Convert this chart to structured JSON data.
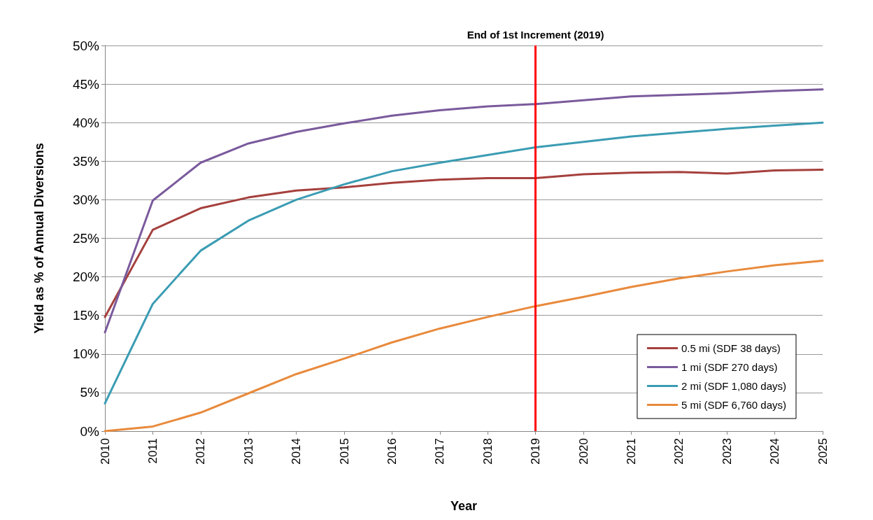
{
  "chart_data": {
    "type": "line",
    "xlabel": "Year",
    "ylabel": "Yield as % of Annual Diversions",
    "categories": [
      "2010",
      "2011",
      "2012",
      "2013",
      "2014",
      "2015",
      "2016",
      "2017",
      "2018",
      "2019",
      "2020",
      "2021",
      "2022",
      "2023",
      "2024",
      "2025"
    ],
    "series": [
      {
        "name": "0.5 mi (SDF 38 days)",
        "color": "#a5403d",
        "values": [
          14.8,
          26.1,
          28.9,
          30.3,
          31.2,
          31.6,
          32.2,
          32.6,
          32.8,
          32.8,
          33.3,
          33.5,
          33.6,
          33.4,
          33.8,
          33.9
        ]
      },
      {
        "name": "1 mi (SDF 270 days)",
        "color": "#7a5a9c",
        "values": [
          12.8,
          29.9,
          34.8,
          37.3,
          38.8,
          39.9,
          40.9,
          41.6,
          42.1,
          42.4,
          42.9,
          43.4,
          43.6,
          43.8,
          44.1,
          44.3
        ]
      },
      {
        "name": "2 mi (SDF 1,080 days)",
        "color": "#3a9cb3",
        "values": [
          3.6,
          16.5,
          23.4,
          27.3,
          30.0,
          32.0,
          33.7,
          34.8,
          35.8,
          36.8,
          37.5,
          38.2,
          38.7,
          39.2,
          39.6,
          40.0
        ]
      },
      {
        "name": "5 mi (SDF 6,760 days)",
        "color": "#e88a3c",
        "values": [
          0,
          0.6,
          2.4,
          4.9,
          7.4,
          9.4,
          11.5,
          13.3,
          14.8,
          16.2,
          17.4,
          18.7,
          19.8,
          20.7,
          21.5,
          22.1
        ]
      }
    ],
    "ylim": [
      0,
      50
    ],
    "yticks": [
      {
        "value": 0,
        "label": "0%"
      },
      {
        "value": 5,
        "label": "5%"
      },
      {
        "value": 10,
        "label": "10%"
      },
      {
        "value": 15,
        "label": "15%"
      },
      {
        "value": 20,
        "label": "20%"
      },
      {
        "value": 25,
        "label": "25%"
      },
      {
        "value": 30,
        "label": "30%"
      },
      {
        "value": 35,
        "label": "35%"
      },
      {
        "value": 40,
        "label": "40%"
      },
      {
        "value": 45,
        "label": "45%"
      },
      {
        "value": 50,
        "label": "50%"
      }
    ],
    "grid": "y",
    "legend": "bottom right",
    "ref_lines": [
      {
        "axis": "x",
        "value": "2019",
        "label": "End of 1st Increment (2019)",
        "color": "#ff0000"
      }
    ]
  }
}
